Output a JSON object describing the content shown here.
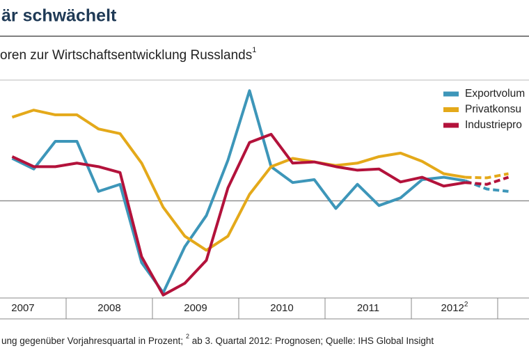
{
  "chart_data": {
    "type": "line",
    "title": "är schwächelt",
    "subtitle": "oren zur Wirtschaftsentwicklung Russlands",
    "subtitle_note": "1",
    "x": [
      2007.375,
      2007.625,
      2007.875,
      2008.125,
      2008.375,
      2008.625,
      2008.875,
      2009.125,
      2009.375,
      2009.625,
      2009.875,
      2010.125,
      2010.375,
      2010.625,
      2010.875,
      2011.125,
      2011.375,
      2011.625,
      2011.875,
      2012.125,
      2012.375,
      2012.625,
      2012.875,
      2013.125
    ],
    "xlim": [
      2007.234,
      2013.363
    ],
    "xticks": [
      {
        "value": 2007.5,
        "label": "2007"
      },
      {
        "value": 2008.5,
        "label": "2008"
      },
      {
        "value": 2009.5,
        "label": "2009"
      },
      {
        "value": 2010.5,
        "label": "2010"
      },
      {
        "value": 2011.5,
        "label": "2011"
      },
      {
        "value": 2012.5,
        "label": "2012"
      }
    ],
    "xtick_note": "2",
    "ylim": [
      -16.5,
      20.5
    ],
    "forecast_from_x": 2012.625,
    "series": [
      {
        "name": "Exportvolum",
        "color": "#3d96b9",
        "values": [
          7.2,
          5.4,
          10.1,
          10.1,
          1.6,
          2.8,
          -10.5,
          -15.6,
          -7.8,
          -2.5,
          6.9,
          18.7,
          5.8,
          3.1,
          3.6,
          -1.3,
          2.8,
          -0.8,
          0.5,
          3.6,
          4.0,
          3.4,
          2.0,
          1.6
        ]
      },
      {
        "name": "Privatkonsu",
        "color": "#e4a91a",
        "values": [
          14.2,
          15.4,
          14.6,
          14.6,
          12.2,
          11.4,
          6.4,
          -1.1,
          -6.0,
          -8.4,
          -6.0,
          1.1,
          5.8,
          7.2,
          6.6,
          6.0,
          6.4,
          7.5,
          8.1,
          6.7,
          4.6,
          4.0,
          3.9,
          4.6
        ]
      },
      {
        "name": "Industriepro",
        "color": "#b3123b",
        "values": [
          7.5,
          5.8,
          5.8,
          6.4,
          5.8,
          4.8,
          -9.5,
          -16.0,
          -14.0,
          -10.1,
          2.2,
          9.9,
          11.3,
          6.4,
          6.6,
          5.8,
          5.2,
          5.4,
          3.2,
          4.0,
          2.5,
          3.1,
          2.8,
          4.0
        ]
      }
    ],
    "footnote": [
      "ung gegenüber Vorjahresquartal in Prozent; ",
      "2",
      " ab 3. Quartal 2012: Prognosen; Quelle: IHS Global Insight"
    ]
  }
}
